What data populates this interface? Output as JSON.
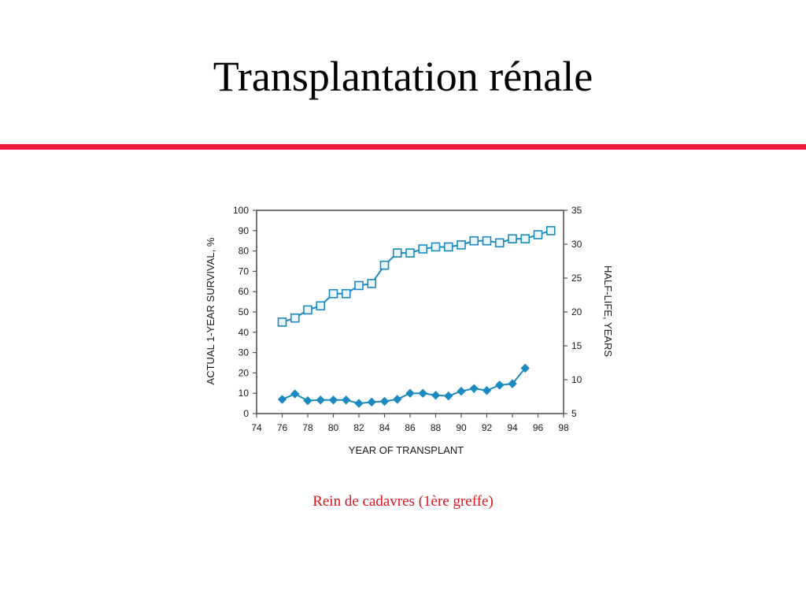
{
  "slide": {
    "title": "Transplantation rénale",
    "caption": "Rein de cadavres (1ère greffe)"
  },
  "colors": {
    "rule": "#ee1c3a",
    "caption": "#e0141e",
    "series": "#1a8ac0",
    "axis": "#555555"
  },
  "chart_data": {
    "type": "line",
    "title": "",
    "xlabel": "YEAR OF TRANSPLANT",
    "ylabel": "ACTUAL 1-YEAR SURVIVAL, %",
    "y2label": "HALF-LIFE, YEARS",
    "xlim": [
      74,
      98
    ],
    "ylim": [
      0,
      100
    ],
    "y2lim": [
      5,
      35
    ],
    "x_ticks": [
      "74",
      "76",
      "78",
      "80",
      "82",
      "84",
      "86",
      "88",
      "90",
      "92",
      "94",
      "96",
      "98"
    ],
    "y_ticks": [
      "0",
      "10",
      "20",
      "30",
      "40",
      "50",
      "60",
      "70",
      "80",
      "90",
      "100"
    ],
    "y2_ticks": [
      "5",
      "10",
      "15",
      "20",
      "25",
      "30",
      "35"
    ],
    "grid": false,
    "legend": "none",
    "series": [
      {
        "axis": "left",
        "marker": "square",
        "x": [
          76,
          77,
          78,
          79,
          80,
          81,
          82,
          83,
          84,
          85,
          86,
          87,
          88,
          89,
          90,
          91,
          92,
          93,
          94,
          95,
          96,
          97
        ],
        "y": [
          45,
          47,
          51,
          53,
          59,
          59,
          63,
          64,
          73,
          79,
          79,
          81,
          82,
          82,
          83,
          85,
          85,
          84,
          86,
          86,
          88,
          90
        ]
      },
      {
        "axis": "right",
        "marker": "diamond",
        "x": [
          76,
          77,
          78,
          79,
          80,
          81,
          82,
          83,
          84,
          85,
          86,
          87,
          88,
          89,
          90,
          91,
          92,
          93,
          94,
          95
        ],
        "y": [
          7.1,
          7.9,
          6.9,
          7.0,
          7.0,
          7.0,
          6.5,
          6.7,
          6.8,
          7.1,
          8.0,
          8.0,
          7.7,
          7.6,
          8.3,
          8.7,
          8.4,
          9.2,
          9.4,
          11.7
        ]
      }
    ]
  }
}
